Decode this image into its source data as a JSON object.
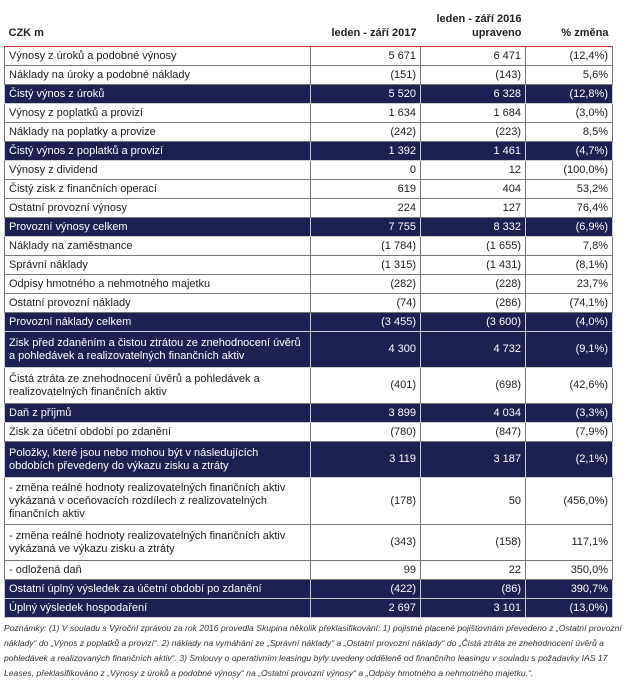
{
  "header": {
    "label": "CZK m",
    "col1": "leden - září 2017",
    "col2a": "leden - září 2016",
    "col2b": "upraveno",
    "col3": "% změna"
  },
  "rows": [
    {
      "label": "Výnosy z úroků a podobné výnosy",
      "v2017": "5 671",
      "v2016": "6 471",
      "change": "(12,4%)",
      "dark": false,
      "lines": 1
    },
    {
      "label": "Náklady na úroky a podobné náklady",
      "v2017": "(151)",
      "v2016": "(143)",
      "change": "5,6%",
      "dark": false,
      "lines": 1
    },
    {
      "label": "Čistý výnos z úroků",
      "v2017": "5 520",
      "v2016": "6 328",
      "change": "(12,8%)",
      "dark": true,
      "lines": 1
    },
    {
      "label": "Výnosy z poplatků a provizí",
      "v2017": "1 634",
      "v2016": "1 684",
      "change": "(3,0%)",
      "dark": false,
      "lines": 1
    },
    {
      "label": "Náklady na poplatky a provize",
      "v2017": "(242)",
      "v2016": "(223)",
      "change": "8,5%",
      "dark": false,
      "lines": 1
    },
    {
      "label": "Čistý výnos z poplatků a provizí",
      "v2017": "1 392",
      "v2016": "1 461",
      "change": "(4,7%)",
      "dark": true,
      "lines": 1
    },
    {
      "label": "Výnosy z dividend",
      "v2017": "0",
      "v2016": "12",
      "change": "(100,0%)",
      "dark": false,
      "lines": 1
    },
    {
      "label": "Čistý zisk z finančních operací",
      "v2017": "619",
      "v2016": "404",
      "change": "53,2%",
      "dark": false,
      "lines": 1
    },
    {
      "label": "Ostatní provozní výnosy",
      "v2017": "224",
      "v2016": "127",
      "change": "76,4%",
      "dark": false,
      "lines": 1
    },
    {
      "label": "Provozní výnosy celkem",
      "v2017": "7 755",
      "v2016": "8 332",
      "change": "(6,9%)",
      "dark": true,
      "lines": 1
    },
    {
      "label": "Náklady na zaměstnance",
      "v2017": "(1 784)",
      "v2016": "(1 655)",
      "change": "7,8%",
      "dark": false,
      "lines": 1
    },
    {
      "label": "Správní náklady",
      "v2017": "(1 315)",
      "v2016": "(1 431)",
      "change": "(8,1%)",
      "dark": false,
      "lines": 1
    },
    {
      "label": "Odpisy hmotného a nehmotného majetku",
      "v2017": "(282)",
      "v2016": "(228)",
      "change": "23,7%",
      "dark": false,
      "lines": 1
    },
    {
      "label": "Ostatní provozní náklady",
      "v2017": "(74)",
      "v2016": "(286)",
      "change": "(74,1%)",
      "dark": false,
      "lines": 1
    },
    {
      "label": "Provozní náklady celkem",
      "v2017": "(3 455)",
      "v2016": "(3 600)",
      "change": "(4,0%)",
      "dark": true,
      "lines": 1
    },
    {
      "label": "Zisk před zdaněním a čistou ztrátou ze znehodnocení úvěrů a pohledávek a realizovatelných finančních aktiv",
      "v2017": "4 300",
      "v2016": "4 732",
      "change": "(9,1%)",
      "dark": true,
      "lines": 2
    },
    {
      "label": "Čistá ztráta ze znehodnocení úvěrů a pohledávek a realizovatelných finančních aktiv",
      "v2017": "(401)",
      "v2016": "(698)",
      "change": "(42,6%)",
      "dark": false,
      "lines": 2
    },
    {
      "label": "Daň z příjmů",
      "v2017": "3 899",
      "v2016": "4 034",
      "change": "(3,3%)",
      "dark": true,
      "lines": 1
    },
    {
      "label": "Zisk za účetní období po zdanění",
      "v2017": "(780)",
      "v2016": "(847)",
      "change": "(7,9%)",
      "dark": false,
      "lines": 1
    },
    {
      "label": "Položky, které jsou nebo mohou být v následujících obdobích převedeny do výkazu zisku a ztráty",
      "v2017": "3 119",
      "v2016": "3 187",
      "change": "(2,1%)",
      "dark": true,
      "lines": 2
    },
    {
      "label": " - změna reálné hodnoty realizovatelných finančních aktiv vykázaná v oceňovacích rozdílech z realizovatelných finančních aktiv",
      "v2017": "(178)",
      "v2016": "50",
      "change": "(456,0%)",
      "dark": false,
      "lines": 3
    },
    {
      "label": " -  změna reálné hodnoty realizovatelných finančních aktiv vykázaná ve výkazu zisku a ztráty",
      "v2017": "(343)",
      "v2016": "(158)",
      "change": "117,1%",
      "dark": false,
      "lines": 2
    },
    {
      "label": " - odložená daň",
      "v2017": "99",
      "v2016": "22",
      "change": "350,0%",
      "dark": false,
      "lines": 1
    },
    {
      "label": "Ostatní úplný výsledek za účetní období po zdanění",
      "v2017": "(422)",
      "v2016": "(86)",
      "change": "390,7%",
      "dark": true,
      "lines": 1
    },
    {
      "label": "Úplný výsledek hospodaření",
      "v2017": "2 697",
      "v2016": "3 101",
      "change": "(13,0%)",
      "dark": true,
      "lines": 1
    }
  ],
  "notes": "Poznámky: (1) V souladu s Výroční zprávou za rok 2016 provedla Skupina několik překlasifikování: 1) pojistné placené pojišťovnám převedeno z „Ostatní provozní náklady“ do „Výnos z poplatků a provizí“. 2) náklady na vymáhání ze „Správní náklady“ a „Ostatní provozní náklady“ do „Čistá ztráta ze znehodnocení úvěrů a pohledávek a realizovaných finančních aktiv“. 3) Smlouvy o operativním leasingu byly uvedeny odděleně od finančního leasingu v souladu s požadavky IAS 17 Leases, překlasifikováno z „Výnosy z úroků a podobné výnosy“ na „Ostatní provozní výnosy“ a „Odpisy hmotného a nehmotného majetku.“."
}
